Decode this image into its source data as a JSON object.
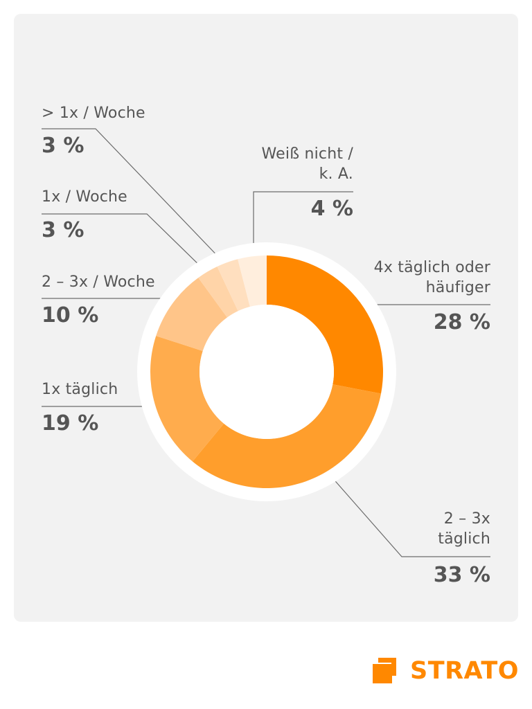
{
  "chart_data": {
    "type": "pie",
    "variant": "donut",
    "start": "12 o'clock, clockwise",
    "categories": [
      "4x täglich oder häufiger",
      "2 – 3x täglich",
      "1x täglich",
      "2 – 3x / Woche",
      "1x / Woche",
      "> 1x / Woche",
      "Weiß nicht / k. A."
    ],
    "values": [
      28,
      33,
      19,
      10,
      3,
      3,
      4
    ],
    "value_labels": [
      "28 %",
      "33 %",
      "19 %",
      "10 %",
      "3 %",
      "3 %",
      "4 %"
    ],
    "colors": [
      "#ff8800",
      "#ff9e2c",
      "#ffac4d",
      "#ffc589",
      "#ffd4a8",
      "#ffdfbf",
      "#ffeedd"
    ],
    "label_lines": [
      [
        "4x täglich oder",
        "häufiger"
      ],
      [
        "2 – 3x",
        "täglich"
      ],
      [
        "1x täglich"
      ],
      [
        "2 – 3x / Woche"
      ],
      [
        "1x / Woche"
      ],
      [
        "> 1x / Woche"
      ],
      [
        "Weiß nicht /",
        "k. A."
      ]
    ]
  },
  "brand": {
    "name": "STRATO",
    "color": "#ff8800"
  }
}
